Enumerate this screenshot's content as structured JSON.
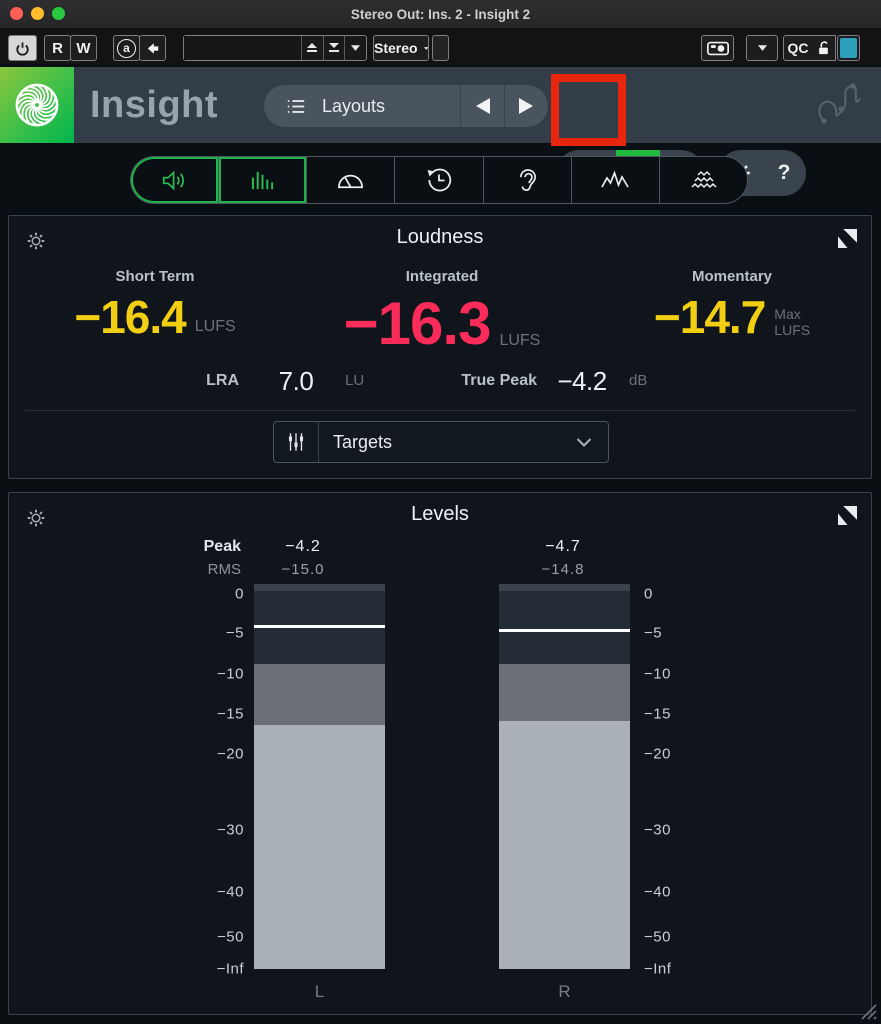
{
  "window": {
    "title": "Stereo Out: Ins. 2 - Insight 2"
  },
  "daw_toolbar": {
    "read_label": "R",
    "write_label": "W",
    "ab_label": "a",
    "preset_value": "",
    "channel_mode": "Stereo",
    "qc_label": "QC",
    "qc_blue": "#2f9fbe"
  },
  "plugin_header": {
    "brand": "Insight",
    "layouts_label": "Layouts",
    "help_label": "?"
  },
  "tabs": [
    {
      "icon": "speaker-icon",
      "active": true
    },
    {
      "icon": "level-bars-icon",
      "active": true
    },
    {
      "icon": "sound-field-icon",
      "active": false
    },
    {
      "icon": "history-icon",
      "active": false
    },
    {
      "icon": "intelligibility-ear-icon",
      "active": false
    },
    {
      "icon": "spectrum-icon",
      "active": false
    },
    {
      "icon": "spectrogram-icon",
      "active": false
    }
  ],
  "annotation": {
    "shape": "rectangle",
    "color": "#e8250e",
    "target": "loop-history-button"
  },
  "loudness": {
    "title": "Loudness",
    "short_term": {
      "label": "Short Term",
      "value": "−16.4",
      "unit": "LUFS",
      "color": "#f3cf14"
    },
    "integrated": {
      "label": "Integrated",
      "value": "−16.3",
      "unit": "LUFS",
      "color": "#fb2b5a"
    },
    "momentary": {
      "label": "Momentary",
      "value": "−14.7",
      "unit_line1": "Max",
      "unit_line2": "LUFS",
      "color": "#f3cf14"
    },
    "lra": {
      "label": "LRA",
      "value": "7.0",
      "unit": "LU"
    },
    "true_peak": {
      "label": "True Peak",
      "value": "−4.2",
      "unit": "dB"
    },
    "targets_label": "Targets"
  },
  "levels": {
    "title": "Levels",
    "peak_label": "Peak",
    "rms_label": "RMS",
    "channels": [
      {
        "name": "L",
        "peak": "−4.2",
        "rms": "−15.0",
        "peak_hold_db": -4.2,
        "peak_bar_db": -8.8,
        "rms_bar_db": -16.3
      },
      {
        "name": "R",
        "peak": "−4.7",
        "rms": "−14.8",
        "peak_hold_db": -4.7,
        "peak_bar_db": -8.8,
        "rms_bar_db": -15.9
      }
    ],
    "scale_ticks": [
      {
        "label": "0",
        "db": 0
      },
      {
        "label": "−5",
        "db": -5
      },
      {
        "label": "−10",
        "db": -10
      },
      {
        "label": "−15",
        "db": -15
      },
      {
        "label": "−20",
        "db": -20
      },
      {
        "label": "−30",
        "db": -30
      },
      {
        "label": "−40",
        "db": -40
      },
      {
        "label": "−50",
        "db": -50
      },
      {
        "label": "−Inf",
        "db": -60
      }
    ],
    "meter_colors": {
      "track": "#232b34",
      "headroom_cap": "#3a424c",
      "peak_segment": "#6b7078",
      "rms_segment": "#a9b0b8",
      "peak_hold_line": "#ffffff"
    }
  },
  "colors": {
    "accent_green": "#1fb34a",
    "pause_green": "#21ba3e",
    "annotation_red": "#e8250e",
    "value_yellow": "#f3cf14",
    "value_pink": "#fb2b5a"
  }
}
